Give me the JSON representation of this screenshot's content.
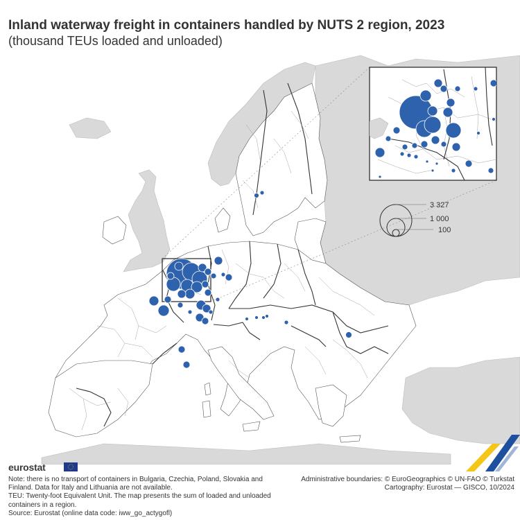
{
  "title": "Inland waterway freight in containers handled by NUTS 2 region, 2023",
  "subtitle": "(thousand TEUs loaded and unloaded)",
  "chart_data": {
    "type": "proportional-symbol-map",
    "unit": "thousand TEUs",
    "legend": {
      "values": [
        3327,
        1000,
        100
      ],
      "labels": [
        "3 327",
        "1 000",
        "100"
      ],
      "placement": "right-middle"
    },
    "bubble_color": "#2f62ad",
    "inset": "Benelux and Rhine area (enlarged)"
  },
  "brand": {
    "name": "eurostat",
    "flag_color": "#1e3a8a"
  },
  "notes": {
    "line1": "Note: there is no transport of containers in Bulgaria, Czechia, Poland, Slovakia and Finland. Data for Italy and Lithuania are not available.",
    "line2": "TEU: Twenty-foot Equivalent Unit. The map presents the sum of loaded and unloaded containers in a region.",
    "line3": "Source: Eurostat (online data code: iww_go_actygofl)"
  },
  "credits": {
    "line1": "Administrative boundaries: © EuroGeographics © UN-FAO © Turkstat",
    "line2": "Cartography: Eurostat — GISCO, 10/2024"
  },
  "colors": {
    "land_outside": "#d9d9d9",
    "land_inside": "#ffffff",
    "accent_blue": "#1e50a0",
    "accent_yellow": "#f5c518"
  }
}
